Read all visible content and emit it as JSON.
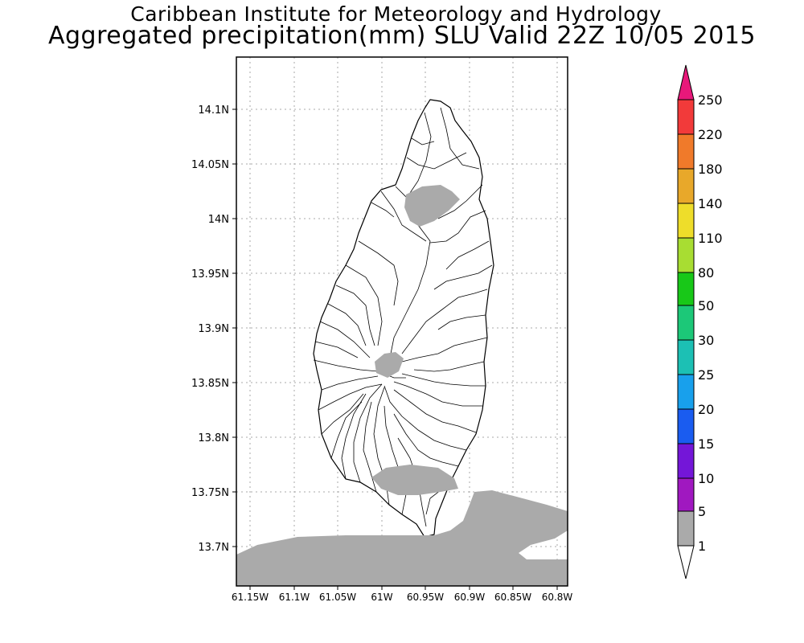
{
  "title": {
    "line1": "Caribbean Institute for Meteorology and Hydrology",
    "line2": "Aggregated precipitation(mm) SLU Valid 22Z 10/05 2015"
  },
  "map": {
    "x_axis": {
      "labels": [
        "61.15W",
        "61.1W",
        "61.05W",
        "61W",
        "60.95W",
        "60.9W",
        "60.85W",
        "60.8W"
      ]
    },
    "y_axis": {
      "labels": [
        "14.1N",
        "14.05N",
        "14N",
        "13.95N",
        "13.9N",
        "13.85N",
        "13.8N",
        "13.75N",
        "13.7N"
      ]
    },
    "grid": "dotted"
  },
  "legend": {
    "labels": [
      "250",
      "220",
      "180",
      "140",
      "110",
      "80",
      "50",
      "30",
      "25",
      "20",
      "15",
      "10",
      "5",
      "1"
    ],
    "colors": [
      "#e8187a",
      "#f23a3a",
      "#f07a2a",
      "#e8a82a",
      "#eedd2a",
      "#a8dd32",
      "#18c818",
      "#1cc878",
      "#1cc0b4",
      "#18a0ec",
      "#1a5cf0",
      "#7416d8",
      "#a018c0",
      "#aaaaaa",
      "#ffffff"
    ]
  }
}
